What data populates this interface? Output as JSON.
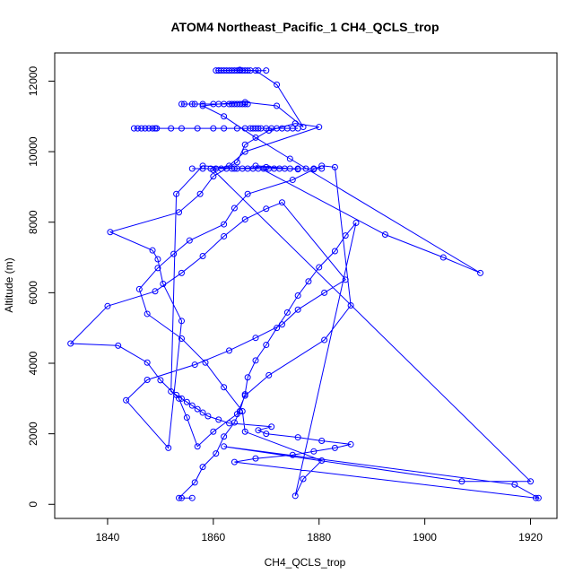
{
  "chart_data": {
    "type": "line",
    "title": "ATOM4 Northeast_Pacific_1 CH4_QCLS_trop",
    "xlabel": "CH4_QCLS_trop",
    "ylabel": "Altitude (m)",
    "xlim": [
      1830,
      1925
    ],
    "ylim": [
      -400,
      12800
    ],
    "xticks": [
      1840,
      1860,
      1880,
      1900,
      1920
    ],
    "yticks": [
      0,
      2000,
      4000,
      6000,
      8000,
      10000,
      12000
    ],
    "grid": false,
    "series": [
      {
        "color": "#0000ff",
        "marker": "open-circle",
        "x": [
          1854,
          1856,
          1853.5,
          1856.5,
          1858,
          1860.5,
          1862,
          1864,
          1865,
          1866,
          1866.5,
          1868,
          1870,
          1872,
          1874,
          1876,
          1878,
          1880,
          1883,
          1885,
          1887,
          1875.5,
          1877,
          1880.5,
          1866,
          1865.5,
          1862,
          1858.5,
          1854,
          1847.5,
          1846,
          1849.5,
          1852.5,
          1855.5,
          1862,
          1864,
          1866.5,
          1875,
          1879,
          1880.5,
          1883,
          1886,
          1881,
          1870.5,
          1866,
          1864.5,
          1860,
          1857,
          1855,
          1853.5,
          1850,
          1847.5,
          1842,
          1833,
          1840,
          1849,
          1854,
          1858,
          1862,
          1866,
          1870,
          1873,
          1885,
          1881,
          1876,
          1873,
          1868,
          1863,
          1856.5,
          1847.5,
          1843.5,
          1851.5,
          1854,
          1850.5,
          1849.5,
          1848.5,
          1840.5,
          1853.5,
          1857.5,
          1860,
          1864.5,
          1866,
          1870.5,
          1875.5,
          1880,
          1866,
          1863,
          1860,
          1920,
          1907,
          1862,
          1917,
          1921.5,
          1921,
          1864,
          1868,
          1875,
          1879,
          1883,
          1886,
          1880.5,
          1876,
          1870,
          1868.5,
          1871,
          1863,
          1861,
          1859,
          1858,
          1857,
          1856,
          1855,
          1854,
          1853,
          1852,
          1853,
          1858,
          1864,
          1870,
          1876,
          1868,
          1892.5,
          1903.5,
          1910.5,
          1874.5,
          1868,
          1862,
          1858,
          1861,
          1866,
          1872,
          1877,
          1872,
          1868,
          1865,
          1861
        ],
        "y": [
          180,
          180,
          180,
          620,
          1060,
          1440,
          1920,
          2320,
          2640,
          3120,
          3600,
          4080,
          4520,
          5000,
          5440,
          5920,
          6320,
          6720,
          7180,
          7620,
          7980,
          240,
          720,
          1240,
          2060,
          2640,
          3320,
          4020,
          4700,
          5400,
          6100,
          6700,
          7100,
          7480,
          7940,
          8400,
          8800,
          9200,
          9500,
          9600,
          9560,
          5640,
          4660,
          3660,
          3080,
          2560,
          2060,
          1640,
          2460,
          3000,
          3520,
          4020,
          4500,
          4560,
          5620,
          6040,
          6560,
          7040,
          7600,
          8080,
          8380,
          8560,
          6370,
          6000,
          5520,
          5100,
          4720,
          4360,
          3960,
          3530,
          2950,
          1600,
          5200,
          6250,
          6950,
          7200,
          7720,
          8280,
          8800,
          9300,
          9700,
          10200,
          10600,
          10800,
          10700,
          10000,
          9600,
          9480,
          650,
          650,
          1640,
          560,
          180,
          180,
          1200,
          1300,
          1400,
          1500,
          1600,
          1700,
          1800,
          1900,
          2000,
          2100,
          2200,
          2300,
          2400,
          2500,
          2600,
          2700,
          2800,
          2900,
          3000,
          3100,
          3200,
          8800,
          9600,
          9520,
          9560,
          9500,
          9600,
          7650,
          7000,
          6560,
          9800,
          10400,
          11000,
          11300,
          11350,
          11400,
          11300,
          10700,
          11900,
          12300,
          12320,
          12300
        ]
      }
    ]
  },
  "clusters": {
    "top_x": [
      1860.5,
      1861,
      1861.5,
      1862,
      1862.5,
      1863,
      1863.5,
      1864,
      1864.5,
      1865,
      1865.5,
      1866,
      1866.5,
      1867,
      1868.5,
      1870
    ],
    "top_y": 12300,
    "band_11300_x": [
      1854,
      1854.5,
      1856,
      1856.5,
      1858,
      1860,
      1862,
      1863,
      1863.5,
      1864,
      1864.5,
      1865,
      1865.5,
      1866,
      1866.5
    ],
    "band_10650_x": [
      1845,
      1845.7,
      1846.4,
      1847.1,
      1847.8,
      1848.5,
      1849,
      1849.3,
      1852,
      1854,
      1857,
      1860,
      1862,
      1864.5,
      1866,
      1867,
      1867.5,
      1868,
      1868.5,
      1869,
      1870,
      1871,
      1872,
      1873,
      1874,
      1875,
      1876
    ],
    "band_9500_x": [
      1856,
      1858,
      1859.5,
      1860.5,
      1861.5,
      1862.5,
      1863.5,
      1864.5,
      1865.5,
      1866.5,
      1867.5,
      1868.5,
      1869.5,
      1870.5,
      1871.5,
      1872.5,
      1873.5,
      1874.5,
      1876,
      1877.5,
      1879,
      1880.5
    ]
  }
}
